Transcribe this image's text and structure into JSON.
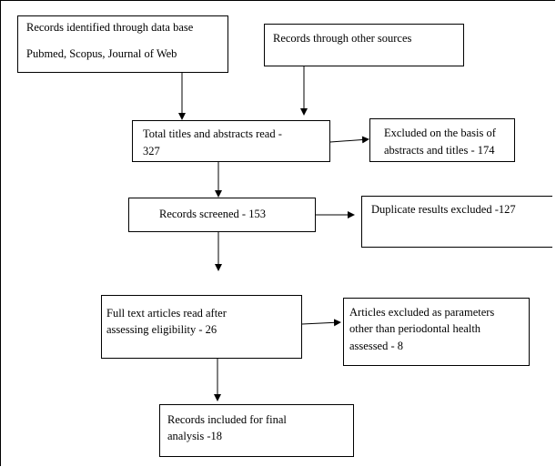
{
  "boxes": {
    "identified": {
      "line1": "Records identified through data base",
      "line2": "Pubmed, Scopus, Journal of Web"
    },
    "other_sources": {
      "line1": "Records through other sources"
    },
    "total_read": {
      "line1": "Total titles and abstracts read -",
      "line2": "327"
    },
    "excluded_abstracts": {
      "line1": "Excluded on the basis of",
      "line2": "abstracts and titles - 174"
    },
    "screened": {
      "line1": "Records screened - 153"
    },
    "duplicates": {
      "line1": "Duplicate results excluded -127"
    },
    "full_text": {
      "line1": "Full text articles read after",
      "line2": "assessing eligibility - 26"
    },
    "excluded_params": {
      "line1": "Articles excluded as parameters",
      "line2": "other than periodontal health",
      "line3": "assessed - 8"
    },
    "included": {
      "line1": "Records included for final",
      "line2": "analysis -18"
    }
  }
}
